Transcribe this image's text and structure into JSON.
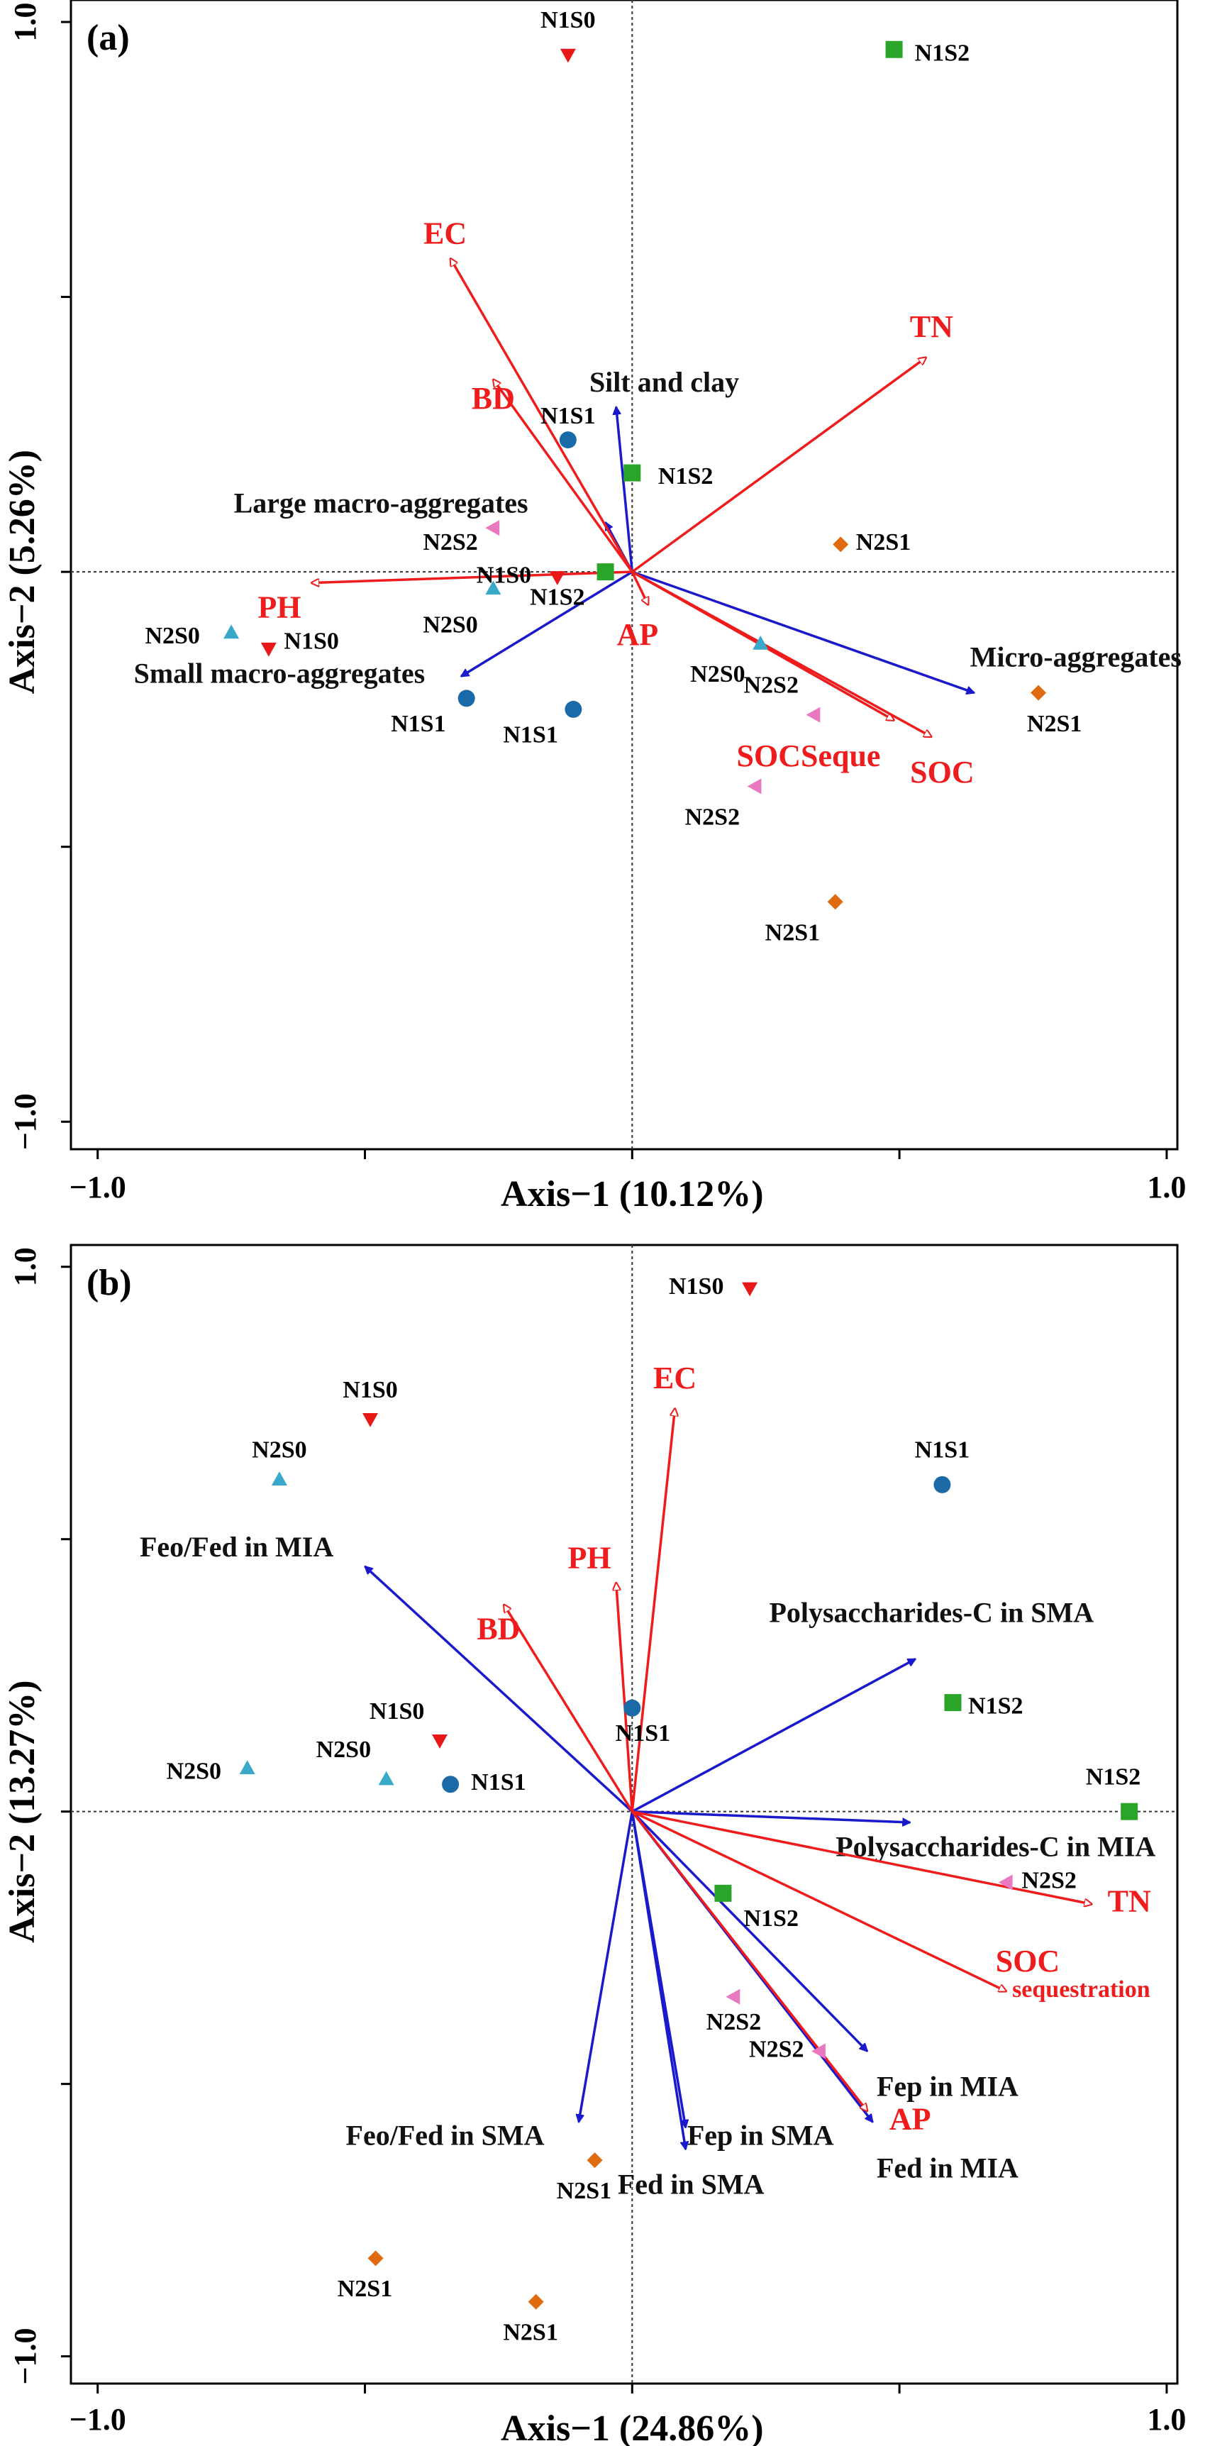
{
  "colors": {
    "env": "#ee1c1c",
    "blue": "#1a1acc",
    "N1S0": "#e81818",
    "N1S1": "#1a6aa8",
    "N1S2": "#2aa52a",
    "N2S0": "#3aa8c8",
    "N2S1": "#e06a10",
    "N2S2": "#e878c0",
    "axis": "#000000"
  },
  "chart_data": [
    {
      "type": "scatter",
      "panel_label": "(a)",
      "xlabel": "Axis−1 (10.12%)",
      "ylabel": "Axis−2 (5.26%)",
      "xlim": [
        -1.05,
        1.02
      ],
      "ylim": [
        -1.05,
        1.04
      ],
      "x_tick_labels": [
        {
          "v": -1,
          "t": "−1.0"
        },
        {
          "v": 1,
          "t": "1.0"
        }
      ],
      "y_tick_labels": [
        {
          "v": 1,
          "t": "1.0"
        },
        {
          "v": -1,
          "t": "−1.0"
        }
      ],
      "x_minor_ticks": [
        -1,
        -0.5,
        0,
        0.5,
        1
      ],
      "y_minor_ticks": [
        -1,
        -0.5,
        0,
        0.5,
        1
      ],
      "env_arrows": [
        {
          "label": "EC",
          "x": -0.34,
          "y": 0.57,
          "lx": -0.35,
          "ly": 0.61,
          "anchor": "middle"
        },
        {
          "label": "TN",
          "x": 0.55,
          "y": 0.39,
          "lx": 0.56,
          "ly": 0.44,
          "anchor": "middle"
        },
        {
          "label": "BD",
          "x": -0.26,
          "y": 0.35,
          "lx": -0.26,
          "ly": 0.31,
          "anchor": "middle"
        },
        {
          "label": "PH",
          "x": -0.6,
          "y": -0.02,
          "lx": -0.66,
          "ly": -0.07,
          "anchor": "middle"
        },
        {
          "label": "AP",
          "x": 0.03,
          "y": -0.06,
          "lx": 0.01,
          "ly": -0.12,
          "anchor": "middle"
        },
        {
          "label": "SOCSeque",
          "x": 0.49,
          "y": -0.27,
          "lx": 0.33,
          "ly": -0.34,
          "anchor": "middle"
        },
        {
          "label": "SOC",
          "x": 0.56,
          "y": -0.3,
          "lx": 0.58,
          "ly": -0.37,
          "anchor": "middle"
        }
      ],
      "blue_arrows": [
        {
          "label": "Silt and clay",
          "x": -0.03,
          "y": 0.3,
          "lx": 0.06,
          "ly": 0.34,
          "anchor": "middle"
        },
        {
          "label": "Large macro-aggregates",
          "x": -0.05,
          "y": 0.09,
          "lx": -0.47,
          "ly": 0.12,
          "anchor": "middle"
        },
        {
          "label": "Small macro-aggregates",
          "x": -0.32,
          "y": -0.19,
          "lx": -0.66,
          "ly": -0.19,
          "anchor": "middle"
        },
        {
          "label": "Micro-aggregates",
          "x": 0.64,
          "y": -0.22,
          "lx": 0.83,
          "ly": -0.16,
          "anchor": "middle"
        }
      ],
      "points": [
        {
          "label": "N1S0",
          "x": -0.12,
          "y": 0.94,
          "marker": "tri-down",
          "c": "N1S0",
          "lx": -0.12,
          "ly": 1.0
        },
        {
          "label": "N1S0",
          "x": -0.14,
          "y": -0.01,
          "marker": "tri-down",
          "c": "N1S0",
          "lx": -0.24,
          "ly": -0.01
        },
        {
          "label": "N1S0",
          "x": -0.68,
          "y": -0.14,
          "marker": "tri-down",
          "c": "N1S0",
          "lx": -0.6,
          "ly": -0.13
        },
        {
          "label": "N1S1",
          "x": -0.12,
          "y": 0.24,
          "marker": "circle",
          "c": "N1S1",
          "lx": -0.12,
          "ly": 0.28
        },
        {
          "label": "N1S1",
          "x": -0.31,
          "y": -0.23,
          "marker": "circle",
          "c": "N1S1",
          "lx": -0.4,
          "ly": -0.28
        },
        {
          "label": "N1S1",
          "x": -0.11,
          "y": -0.25,
          "marker": "circle",
          "c": "N1S1",
          "lx": -0.19,
          "ly": -0.3
        },
        {
          "label": "N1S2",
          "x": 0.49,
          "y": 0.95,
          "marker": "square",
          "c": "N1S2",
          "lx": 0.58,
          "ly": 0.94
        },
        {
          "label": "N1S2",
          "x": 0.0,
          "y": 0.18,
          "marker": "square",
          "c": "N1S2",
          "lx": 0.1,
          "ly": 0.17
        },
        {
          "label": "N1S2",
          "x": -0.05,
          "y": 0.0,
          "marker": "square",
          "c": "N1S2",
          "lx": -0.14,
          "ly": -0.05
        },
        {
          "label": "N2S0",
          "x": -0.26,
          "y": -0.03,
          "marker": "tri-up",
          "c": "N2S0",
          "lx": -0.34,
          "ly": -0.1
        },
        {
          "label": "N2S0",
          "x": -0.75,
          "y": -0.11,
          "marker": "tri-up",
          "c": "N2S0",
          "lx": -0.86,
          "ly": -0.12
        },
        {
          "label": "N2S0",
          "x": 0.24,
          "y": -0.13,
          "marker": "tri-up",
          "c": "N2S0",
          "lx": 0.16,
          "ly": -0.19
        },
        {
          "label": "N2S1",
          "x": 0.39,
          "y": 0.05,
          "marker": "diamond",
          "c": "N2S1",
          "lx": 0.47,
          "ly": 0.05
        },
        {
          "label": "N2S1",
          "x": 0.76,
          "y": -0.22,
          "marker": "diamond",
          "c": "N2S1",
          "lx": 0.79,
          "ly": -0.28
        },
        {
          "label": "N2S1",
          "x": 0.38,
          "y": -0.6,
          "marker": "diamond",
          "c": "N2S1",
          "lx": 0.3,
          "ly": -0.66
        },
        {
          "label": "N2S2",
          "x": -0.26,
          "y": 0.08,
          "marker": "tri-left",
          "c": "N2S2",
          "lx": -0.34,
          "ly": 0.05
        },
        {
          "label": "N2S2",
          "x": 0.34,
          "y": -0.26,
          "marker": "tri-left",
          "c": "N2S2",
          "lx": 0.26,
          "ly": -0.21
        },
        {
          "label": "N2S2",
          "x": 0.23,
          "y": -0.39,
          "marker": "tri-left",
          "c": "N2S2",
          "lx": 0.15,
          "ly": -0.45
        }
      ]
    },
    {
      "type": "scatter",
      "panel_label": "(b)",
      "xlabel": "Axis−1 (24.86%)",
      "ylabel": "Axis−2 (13.27%)",
      "xlim": [
        -1.05,
        1.02
      ],
      "ylim": [
        -1.05,
        1.04
      ],
      "x_tick_labels": [
        {
          "v": -1,
          "t": "−1.0"
        },
        {
          "v": 1,
          "t": "1.0"
        }
      ],
      "y_tick_labels": [
        {
          "v": 1,
          "t": "1.0"
        },
        {
          "v": -1,
          "t": "−1.0"
        }
      ],
      "x_minor_ticks": [
        -1,
        -0.5,
        0,
        0.5,
        1
      ],
      "y_minor_ticks": [
        -1,
        -0.5,
        0,
        0.5,
        1
      ],
      "env_arrows": [
        {
          "label": "EC",
          "x": 0.08,
          "y": 0.74,
          "lx": 0.08,
          "ly": 0.79,
          "anchor": "middle"
        },
        {
          "label": "PH",
          "x": -0.03,
          "y": 0.42,
          "lx": -0.08,
          "ly": 0.46,
          "anchor": "middle"
        },
        {
          "label": "BD",
          "x": -0.24,
          "y": 0.38,
          "lx": -0.25,
          "ly": 0.33,
          "anchor": "middle"
        },
        {
          "label": "TN",
          "x": 0.86,
          "y": -0.17,
          "lx": 0.93,
          "ly": -0.17,
          "anchor": "middle"
        },
        {
          "label": "SOC",
          "x": 0.7,
          "y": -0.33,
          "lx": 0.74,
          "ly": -0.28,
          "anchor": "middle"
        },
        {
          "label": "sequestration",
          "x": 0.7,
          "y": -0.33,
          "lx": 0.84,
          "ly": -0.33,
          "anchor": "middle",
          "noarrow": true,
          "small": true
        },
        {
          "label": "AP",
          "x": 0.44,
          "y": -0.55,
          "lx": 0.52,
          "ly": -0.57,
          "anchor": "middle"
        }
      ],
      "blue_arrows": [
        {
          "label": "Feo/Fed in MIA",
          "x": -0.5,
          "y": 0.45,
          "lx": -0.74,
          "ly": 0.48,
          "anchor": "middle"
        },
        {
          "label": "Polysaccharides-C in SMA",
          "x": 0.53,
          "y": 0.28,
          "lx": 0.56,
          "ly": 0.36,
          "anchor": "middle"
        },
        {
          "label": "Polysaccharides-C in MIA",
          "x": 0.52,
          "y": -0.02,
          "lx": 0.68,
          "ly": -0.07,
          "anchor": "middle"
        },
        {
          "label": "Fep in MIA",
          "x": 0.44,
          "y": -0.44,
          "lx": 0.59,
          "ly": -0.51,
          "anchor": "middle"
        },
        {
          "label": "Fed in MIA",
          "x": 0.45,
          "y": -0.57,
          "lx": 0.59,
          "ly": -0.66,
          "anchor": "middle"
        },
        {
          "label": "Fep in SMA",
          "x": 0.1,
          "y": -0.58,
          "lx": 0.24,
          "ly": -0.6,
          "anchor": "middle"
        },
        {
          "label": "Fed in SMA",
          "x": 0.1,
          "y": -0.62,
          "lx": 0.11,
          "ly": -0.69,
          "anchor": "middle"
        },
        {
          "label": "Feo/Fed in SMA",
          "x": -0.1,
          "y": -0.57,
          "lx": -0.35,
          "ly": -0.6,
          "anchor": "middle"
        }
      ],
      "points": [
        {
          "label": "N1S0",
          "x": 0.22,
          "y": 0.96,
          "marker": "tri-down",
          "c": "N1S0",
          "lx": 0.12,
          "ly": 0.96
        },
        {
          "label": "N1S0",
          "x": -0.49,
          "y": 0.72,
          "marker": "tri-down",
          "c": "N1S0",
          "lx": -0.49,
          "ly": 0.77
        },
        {
          "label": "N1S0",
          "x": -0.36,
          "y": 0.13,
          "marker": "tri-down",
          "c": "N1S0",
          "lx": -0.44,
          "ly": 0.18
        },
        {
          "label": "N1S1",
          "x": 0.58,
          "y": 0.6,
          "marker": "circle",
          "c": "N1S1",
          "lx": 0.58,
          "ly": 0.66
        },
        {
          "label": "N1S1",
          "x": 0.0,
          "y": 0.19,
          "marker": "circle",
          "c": "N1S1",
          "lx": 0.02,
          "ly": 0.14
        },
        {
          "label": "N1S1",
          "x": -0.34,
          "y": 0.05,
          "marker": "circle",
          "c": "N1S1",
          "lx": -0.25,
          "ly": 0.05
        },
        {
          "label": "N1S2",
          "x": 0.6,
          "y": 0.2,
          "marker": "square",
          "c": "N1S2",
          "lx": 0.68,
          "ly": 0.19
        },
        {
          "label": "N1S2",
          "x": 0.93,
          "y": 0.0,
          "marker": "square",
          "c": "N1S2",
          "lx": 0.9,
          "ly": 0.06
        },
        {
          "label": "N1S2",
          "x": 0.17,
          "y": -0.15,
          "marker": "square",
          "c": "N1S2",
          "lx": 0.26,
          "ly": -0.2
        },
        {
          "label": "N2S0",
          "x": -0.66,
          "y": 0.61,
          "marker": "tri-up",
          "c": "N2S0",
          "lx": -0.66,
          "ly": 0.66
        },
        {
          "label": "N2S0",
          "x": -0.46,
          "y": 0.06,
          "marker": "tri-up",
          "c": "N2S0",
          "lx": -0.54,
          "ly": 0.11
        },
        {
          "label": "N2S0",
          "x": -0.72,
          "y": 0.08,
          "marker": "tri-up",
          "c": "N2S0",
          "lx": -0.82,
          "ly": 0.07
        },
        {
          "label": "N2S1",
          "x": -0.07,
          "y": -0.64,
          "marker": "diamond",
          "c": "N2S1",
          "lx": -0.09,
          "ly": -0.7
        },
        {
          "label": "N2S1",
          "x": -0.48,
          "y": -0.82,
          "marker": "diamond",
          "c": "N2S1",
          "lx": -0.5,
          "ly": -0.88
        },
        {
          "label": "N2S1",
          "x": -0.18,
          "y": -0.9,
          "marker": "diamond",
          "c": "N2S1",
          "lx": -0.19,
          "ly": -0.96
        },
        {
          "label": "N2S2",
          "x": 0.7,
          "y": -0.13,
          "marker": "tri-left",
          "c": "N2S2",
          "lx": 0.78,
          "ly": -0.13
        },
        {
          "label": "N2S2",
          "x": 0.19,
          "y": -0.34,
          "marker": "tri-left",
          "c": "N2S2",
          "lx": 0.19,
          "ly": -0.39
        },
        {
          "label": "N2S2",
          "x": 0.35,
          "y": -0.44,
          "marker": "tri-left",
          "c": "N2S2",
          "lx": 0.27,
          "ly": -0.44
        }
      ]
    }
  ]
}
